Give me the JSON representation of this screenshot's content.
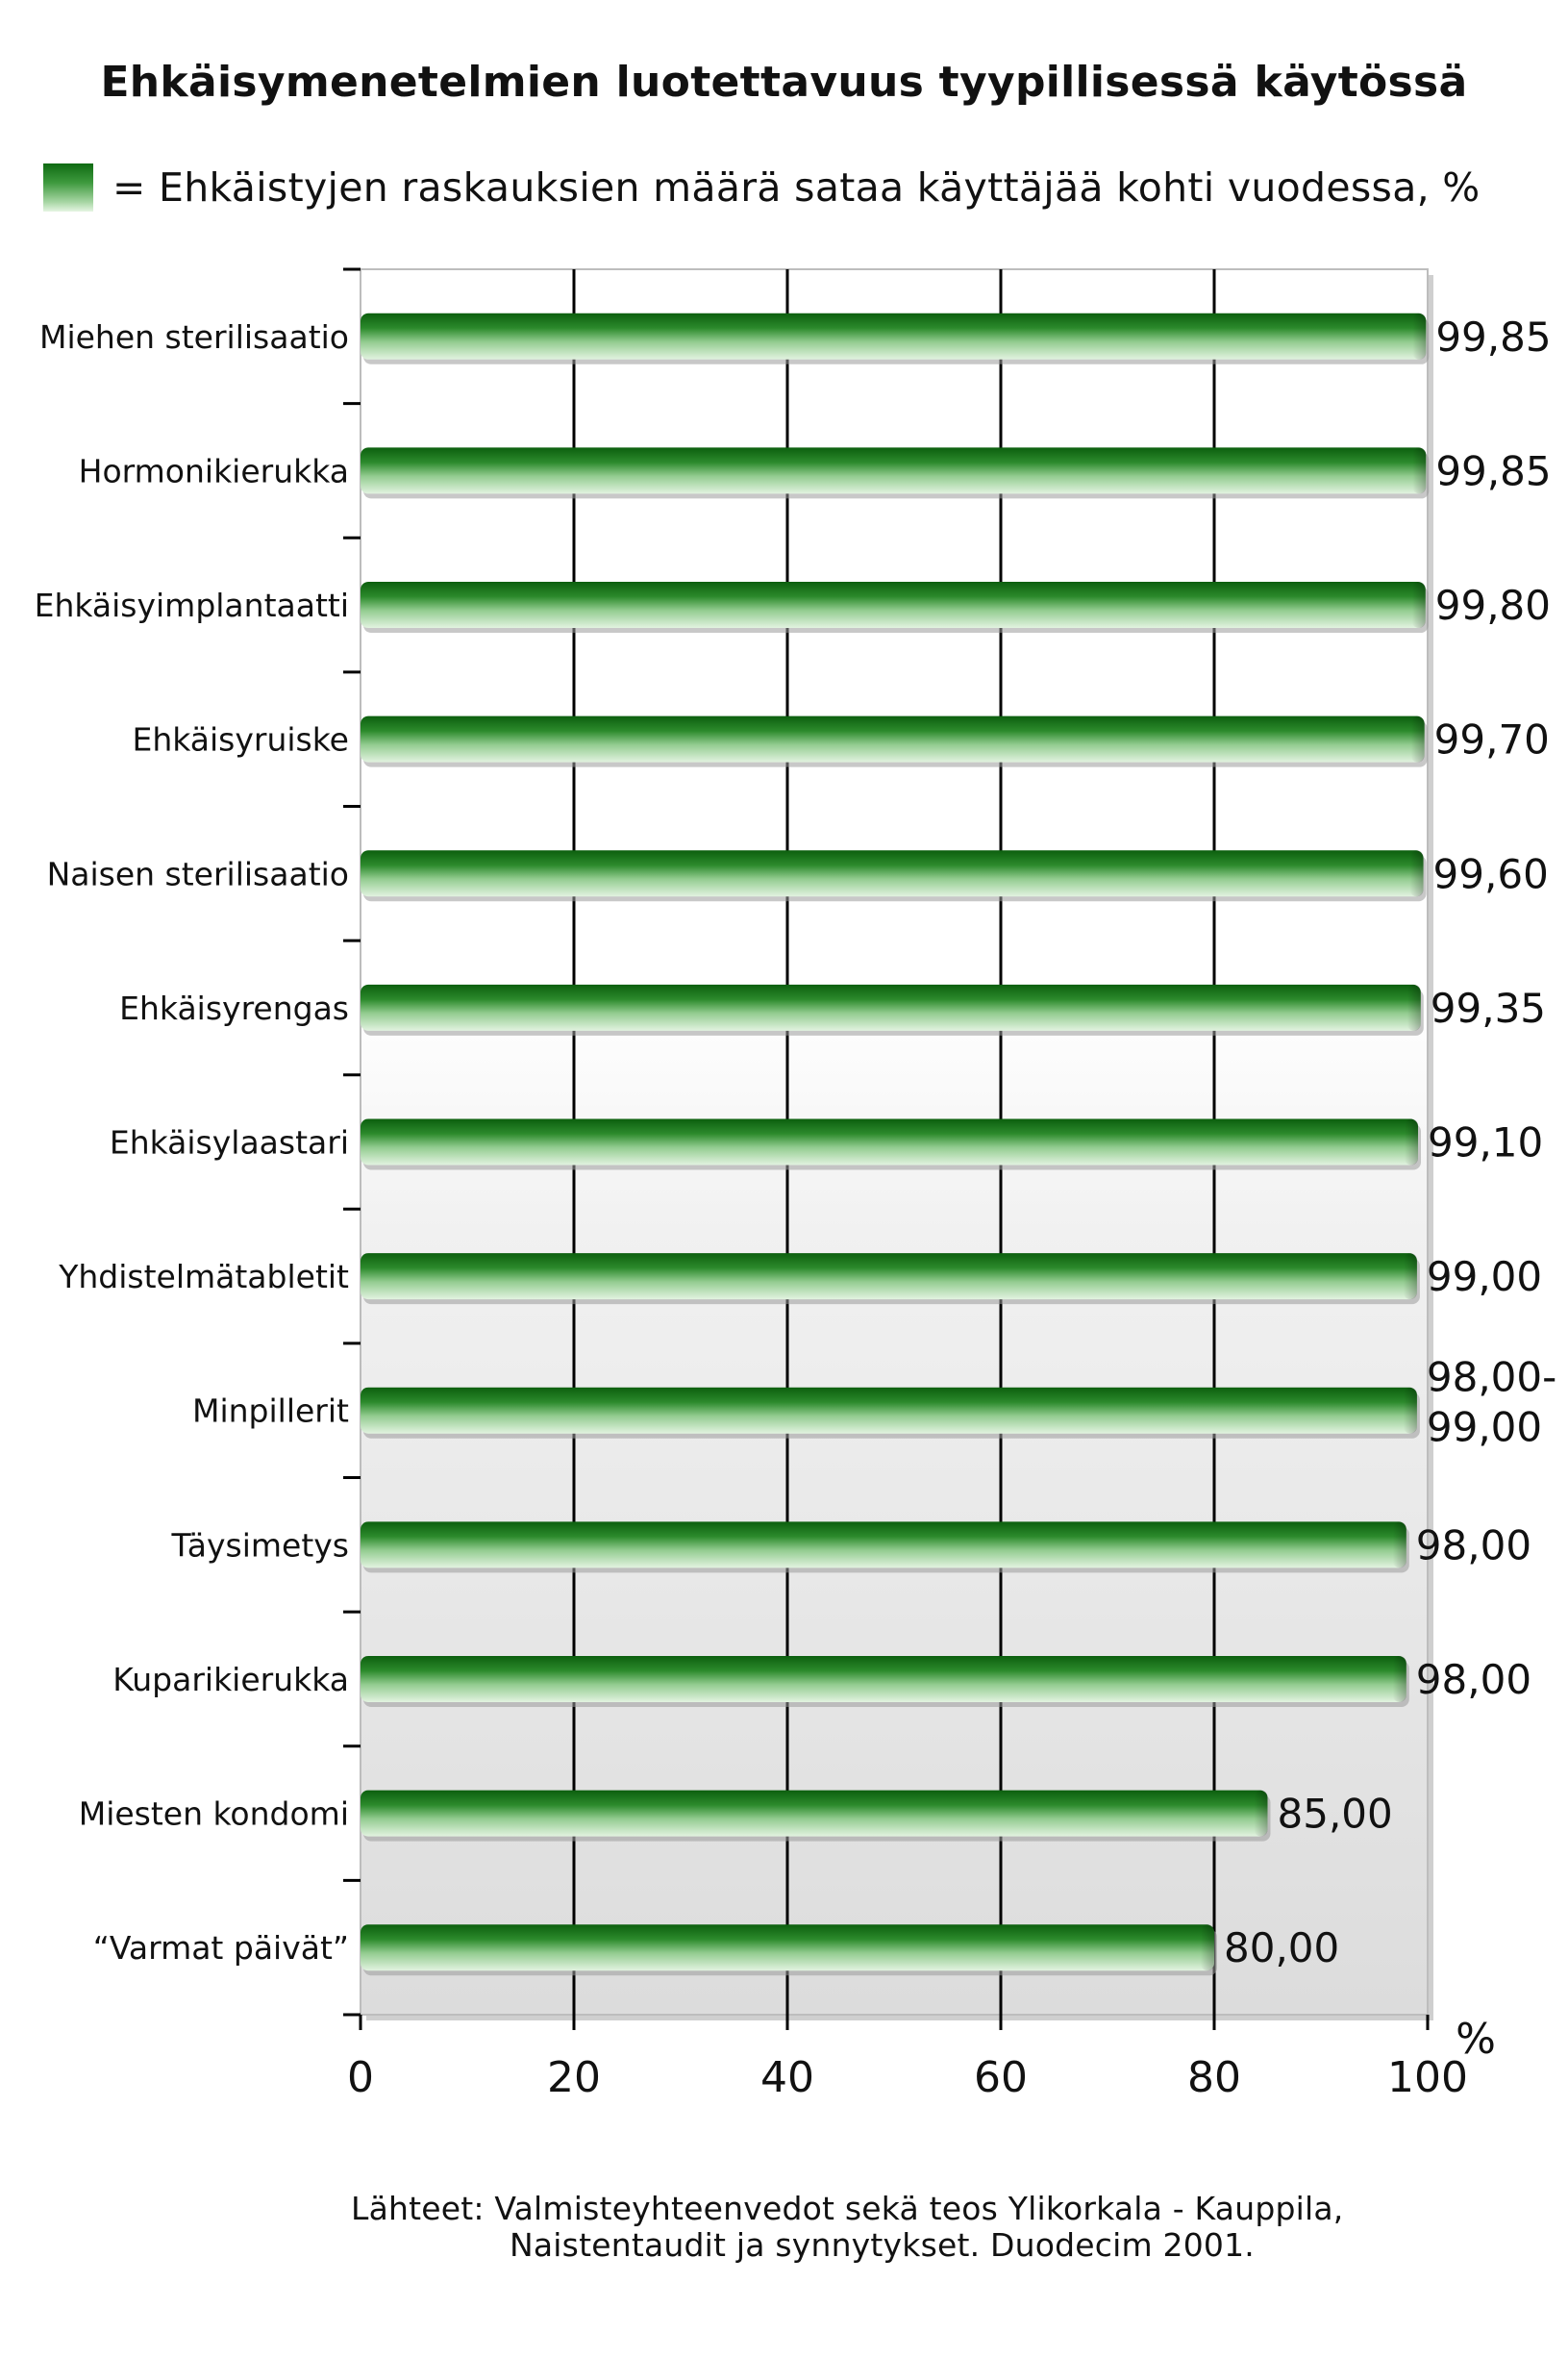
{
  "chart_data": {
    "type": "bar",
    "orientation": "horizontal",
    "title": "Ehkäisymenetelmien luotettavuus tyypillisessä käytössä",
    "legend": {
      "label": "= Ehkäistyjen raskauksien määrä sataa käyttäjää kohti vuodessa, %",
      "position": "top-left"
    },
    "x_unit_label": "%",
    "xlim": [
      0,
      100
    ],
    "x_ticks": [
      "0",
      "20",
      "40",
      "60",
      "80",
      "100"
    ],
    "grid": true,
    "categories": [
      "Miehen sterilisaatio",
      "Hormonikierukka",
      "Ehkäisyimplantaatti",
      "Ehkäisyruiske",
      "Naisen sterilisaatio",
      "Ehkäisyrengas",
      "Ehkäisylaastari",
      "Yhdistelmätabletit",
      "Minpillerit",
      "Täysimetys",
      "Kuparikierukka",
      "Miesten kondomi",
      "“Varmat päivät”"
    ],
    "values": [
      99.85,
      99.85,
      99.8,
      99.7,
      99.6,
      99.35,
      99.1,
      99.0,
      99.0,
      98.0,
      98.0,
      85.0,
      80.0
    ],
    "value_labels": [
      [
        "99,85"
      ],
      [
        "99,85"
      ],
      [
        "99,80"
      ],
      [
        "99,70"
      ],
      [
        "99,60"
      ],
      [
        "99,35"
      ],
      [
        "99,10"
      ],
      [
        "99,00"
      ],
      [
        "98,00-",
        "99,00"
      ],
      [
        "98,00"
      ],
      [
        "98,00"
      ],
      [
        "85,00"
      ],
      [
        "80,00"
      ]
    ],
    "bar_color": "#1f7a1f"
  },
  "source": {
    "line1": "Lähteet: Valmisteyhteenvedot sekä teos Ylikorkala - Kauppila,",
    "line2": "Naistentaudit ja synnytykset. Duodecim 2001."
  }
}
